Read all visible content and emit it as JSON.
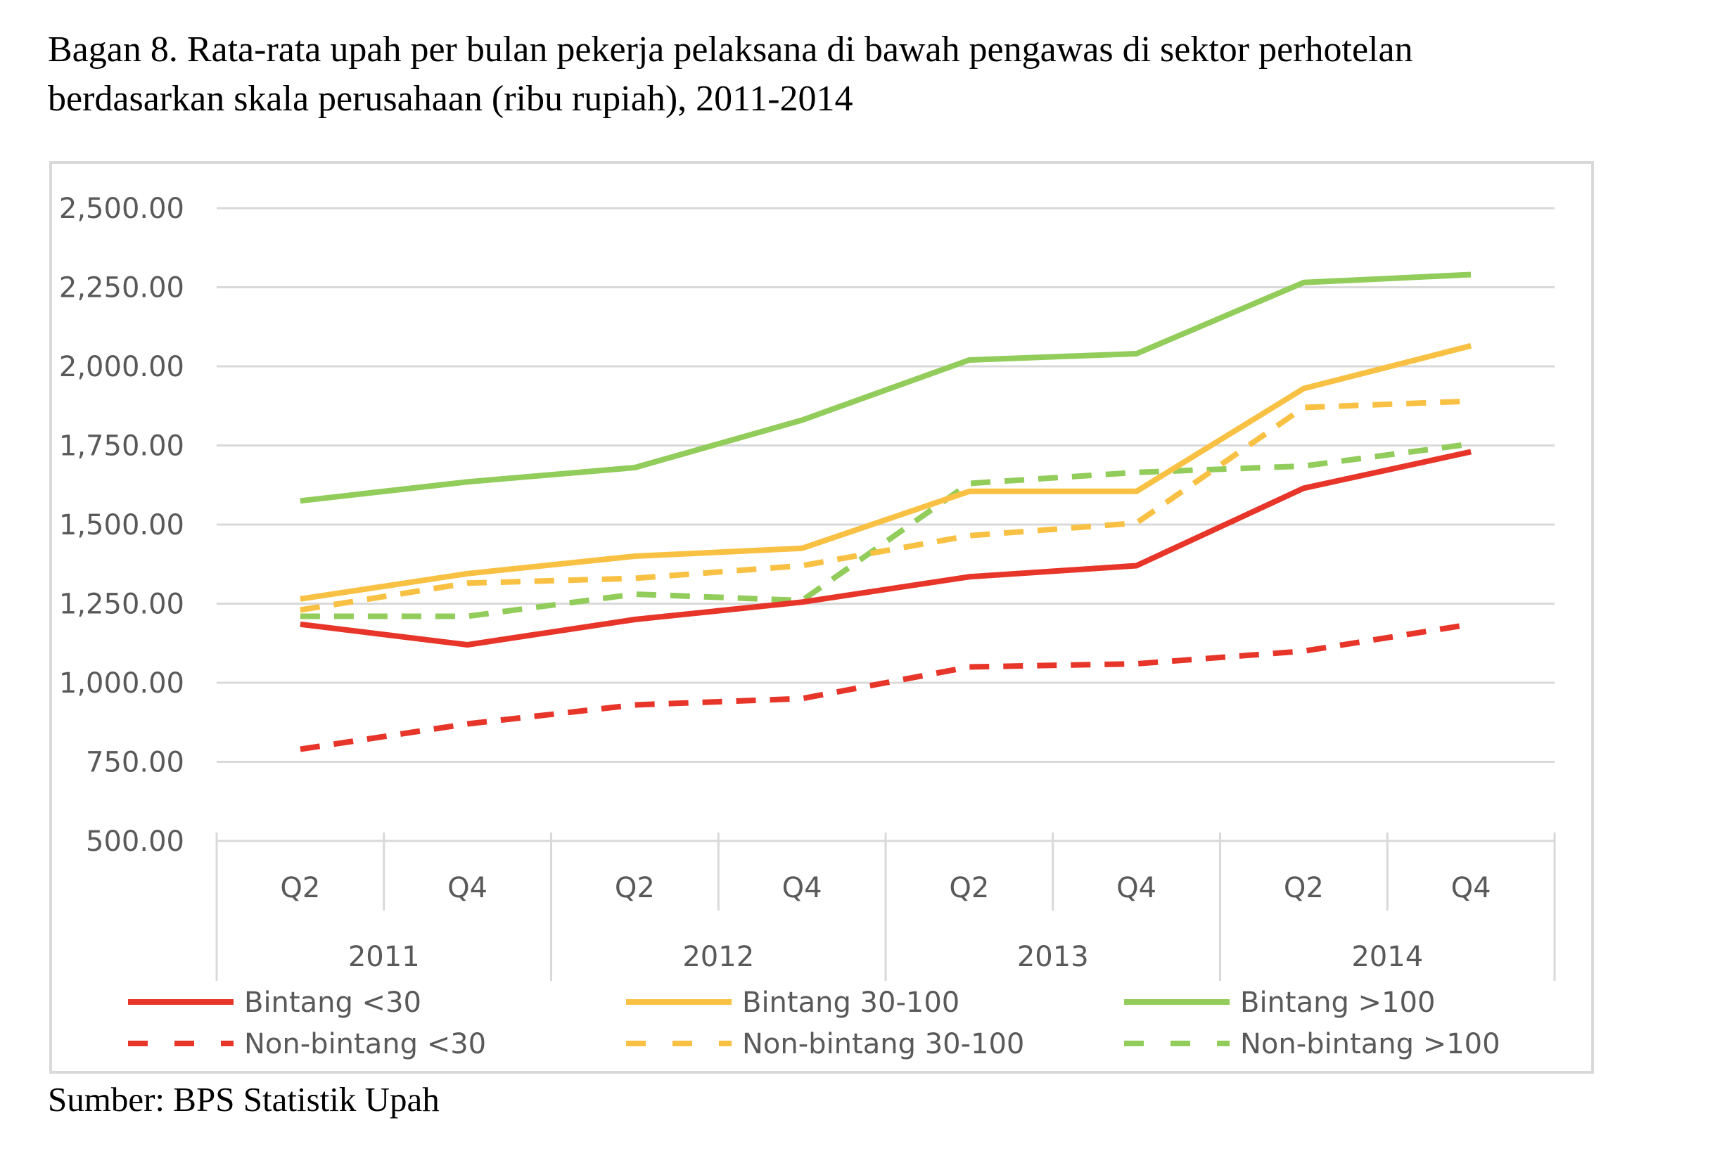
{
  "caption": {
    "line1": "Bagan 8. Rata-rata upah per bulan pekerja pelaksana di bawah pengawas di sektor perhotelan",
    "line2": "berdasarkan skala perusahaan (ribu rupiah), 2011-2014"
  },
  "source": "Sumber: BPS Statistik Upah",
  "chart_data": {
    "type": "line",
    "title": "",
    "xlabel": "",
    "ylabel": "",
    "ylim": [
      500,
      2500
    ],
    "yticks": [
      "500.00",
      "750.00",
      "1,000.00",
      "1,250.00",
      "1,500.00",
      "1,750.00",
      "2,000.00",
      "2,250.00",
      "2,500.00"
    ],
    "x": [
      "Q2",
      "Q4",
      "Q2",
      "Q4",
      "Q2",
      "Q4",
      "Q2",
      "Q4"
    ],
    "groups": [
      "2011",
      "2012",
      "2013",
      "2014"
    ],
    "grid": true,
    "legend_position": "bottom",
    "series": [
      {
        "name": "Bintang <30",
        "color": "#e8352a",
        "dash": "solid",
        "values": [
          1185,
          1120,
          1200,
          1255,
          1335,
          1370,
          1615,
          1730
        ]
      },
      {
        "name": "Bintang 30-100",
        "color": "#f9c143",
        "dash": "solid",
        "values": [
          1265,
          1345,
          1400,
          1425,
          1605,
          1605,
          1930,
          2065
        ]
      },
      {
        "name": "Bintang >100",
        "color": "#92cc5a",
        "dash": "solid",
        "values": [
          1575,
          1635,
          1680,
          1830,
          2020,
          2040,
          2265,
          2290
        ]
      },
      {
        "name": "Non-bintang <30",
        "color": "#e8352a",
        "dash": "dashed",
        "values": [
          790,
          870,
          930,
          950,
          1050,
          1060,
          1100,
          1185
        ]
      },
      {
        "name": "Non-bintang 30-100",
        "color": "#f9c143",
        "dash": "dashed",
        "values": [
          1230,
          1315,
          1330,
          1370,
          1465,
          1505,
          1870,
          1890
        ]
      },
      {
        "name": "Non-bintang >100",
        "color": "#92cc5a",
        "dash": "dashed",
        "values": [
          1210,
          1210,
          1280,
          1260,
          1630,
          1665,
          1685,
          1755
        ]
      }
    ]
  }
}
